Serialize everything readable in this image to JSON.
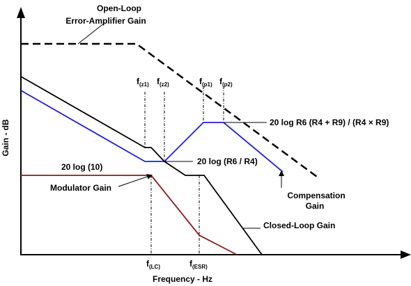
{
  "figure": {
    "colors": {
      "axes": "#000000",
      "open_loop": "#000000",
      "closed_loop": "#000000",
      "compensation": "#1f1fd6",
      "modulator": "#8b1a1a"
    },
    "axes": {
      "y_label": "Gain - dB",
      "x_label": "Frequency - Hz"
    },
    "curves": {
      "open_loop_label_line1": "Open-Loop",
      "open_loop_label_line2": "Error-Amplifier Gain",
      "compensation_label_line1": "Compensation",
      "compensation_label_line2": "Gain",
      "modulator_label": "Modulator Gain",
      "closed_loop_label": "Closed-Loop Gain"
    },
    "annotations": {
      "high_gain_formula": "20 log R6 (R4 + R9) / (R4 × R9)",
      "mid_gain_formula": "20 log (R6 / R4)",
      "modulator_gain_formula": "20 log (10)"
    },
    "frequency_markers": {
      "fz1_base": "f",
      "fz1_sub": "(z1)",
      "fz2_base": "f",
      "fz2_sub": "(z2)",
      "fp1_base": "f",
      "fp1_sub": "(p1)",
      "fp2_base": "f",
      "fp2_sub": "(p2)",
      "flc_base": "f",
      "flc_sub": "(LC)",
      "fesr_base": "f",
      "fesr_sub": "(ESR)"
    }
  }
}
